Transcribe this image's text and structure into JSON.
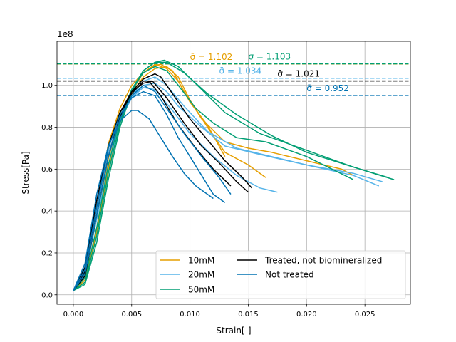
{
  "chart_data": {
    "type": "line",
    "title": "",
    "xlabel": "Strain[-]",
    "ylabel": "Stress[Pa]",
    "y_offset_label": "1e8",
    "xlim": [
      -0.0014,
      0.0289
    ],
    "ylim": [
      -0.045,
      1.21
    ],
    "x_ticks": [
      0.0,
      0.005,
      0.01,
      0.015,
      0.02,
      0.025
    ],
    "x_tick_labels": [
      "0.000",
      "0.005",
      "0.010",
      "0.015",
      "0.020",
      "0.025"
    ],
    "y_ticks": [
      0.0,
      0.2,
      0.4,
      0.6,
      0.8,
      1.0
    ],
    "y_tick_labels": [
      "0.0",
      "0.2",
      "0.4",
      "0.6",
      "0.8",
      "1.0"
    ],
    "grid": true,
    "legend_position": "lower-right",
    "legend": [
      {
        "label": "10mM",
        "color": "#E69F00"
      },
      {
        "label": "20mM",
        "color": "#56B4E9"
      },
      {
        "label": "50mM",
        "color": "#009E73"
      },
      {
        "label": "Treated, not biomineralized",
        "color": "#000000"
      },
      {
        "label": "Not treated",
        "color": "#0072B2"
      }
    ],
    "mean_lines": [
      {
        "y": 1.102,
        "color": "#E69F00",
        "label": "σ̄ = 1.102",
        "label_x": 0.01
      },
      {
        "y": 1.103,
        "color": "#009E73",
        "label": "σ̄ = 1.103",
        "label_x": 0.015
      },
      {
        "y": 1.034,
        "color": "#56B4E9",
        "label": "σ̄ = 1.034",
        "label_x": 0.0125
      },
      {
        "y": 1.021,
        "color": "#000000",
        "label": "σ̄ = 1.021",
        "label_x": 0.0175
      },
      {
        "y": 0.952,
        "color": "#0072B2",
        "label": "σ̄ = 0.952",
        "label_x": 0.02
      }
    ],
    "series": [
      {
        "group": "10mM",
        "color": "#E69F00",
        "x": [
          0.0,
          0.001,
          0.002,
          0.003,
          0.004,
          0.005,
          0.006,
          0.007,
          0.0075,
          0.0085,
          0.0095,
          0.011,
          0.013,
          0.015,
          0.017,
          0.02,
          0.023,
          0.024
        ],
        "y": [
          0.02,
          0.08,
          0.4,
          0.72,
          0.89,
          1.0,
          1.06,
          1.095,
          1.1,
          1.07,
          0.97,
          0.84,
          0.73,
          0.7,
          0.68,
          0.64,
          0.6,
          0.57
        ]
      },
      {
        "group": "10mM",
        "color": "#E69F00",
        "x": [
          0.0,
          0.001,
          0.002,
          0.003,
          0.004,
          0.005,
          0.006,
          0.007,
          0.008,
          0.009,
          0.01,
          0.0115,
          0.013,
          0.015,
          0.0165
        ],
        "y": [
          0.02,
          0.1,
          0.36,
          0.65,
          0.84,
          0.96,
          1.04,
          1.08,
          1.09,
          1.04,
          0.93,
          0.8,
          0.68,
          0.62,
          0.56
        ]
      },
      {
        "group": "10mM",
        "color": "#E69F00",
        "x": [
          0.0,
          0.001,
          0.002,
          0.003,
          0.004,
          0.005,
          0.006,
          0.007,
          0.008,
          0.009,
          0.01,
          0.0115,
          0.013
        ],
        "y": [
          0.02,
          0.07,
          0.3,
          0.6,
          0.82,
          0.97,
          1.06,
          1.1,
          1.08,
          1.02,
          0.92,
          0.81,
          0.66
        ]
      },
      {
        "group": "20mM",
        "color": "#56B4E9",
        "x": [
          0.0,
          0.001,
          0.002,
          0.003,
          0.004,
          0.005,
          0.006,
          0.007,
          0.008,
          0.009,
          0.011,
          0.013,
          0.016,
          0.02,
          0.024,
          0.0262
        ],
        "y": [
          0.02,
          0.12,
          0.4,
          0.66,
          0.83,
          0.94,
          1.0,
          1.01,
          0.97,
          0.9,
          0.8,
          0.71,
          0.67,
          0.62,
          0.57,
          0.52
        ]
      },
      {
        "group": "20mM",
        "color": "#56B4E9",
        "x": [
          0.0,
          0.001,
          0.002,
          0.003,
          0.004,
          0.005,
          0.006,
          0.007,
          0.008,
          0.0095,
          0.0115,
          0.014,
          0.017,
          0.02,
          0.024,
          0.0265
        ],
        "y": [
          0.02,
          0.1,
          0.36,
          0.62,
          0.82,
          0.95,
          1.02,
          1.04,
          1.0,
          0.9,
          0.78,
          0.7,
          0.66,
          0.62,
          0.58,
          0.54
        ]
      },
      {
        "group": "20mM",
        "color": "#56B4E9",
        "x": [
          0.0,
          0.001,
          0.002,
          0.003,
          0.004,
          0.005,
          0.006,
          0.007,
          0.0085,
          0.01,
          0.012,
          0.014,
          0.016,
          0.0175
        ],
        "y": [
          0.02,
          0.14,
          0.42,
          0.68,
          0.84,
          0.94,
          0.99,
          0.98,
          0.88,
          0.77,
          0.66,
          0.57,
          0.51,
          0.49
        ]
      },
      {
        "group": "50mM",
        "color": "#009E73",
        "x": [
          0.0,
          0.001,
          0.002,
          0.003,
          0.004,
          0.005,
          0.006,
          0.007,
          0.0078,
          0.009,
          0.011,
          0.013,
          0.016,
          0.02,
          0.024,
          0.0275
        ],
        "y": [
          0.02,
          0.05,
          0.25,
          0.55,
          0.8,
          0.97,
          1.07,
          1.11,
          1.12,
          1.09,
          0.98,
          0.87,
          0.77,
          0.69,
          0.61,
          0.55
        ]
      },
      {
        "group": "50mM",
        "color": "#009E73",
        "x": [
          0.0,
          0.001,
          0.002,
          0.003,
          0.004,
          0.005,
          0.006,
          0.007,
          0.008,
          0.0095,
          0.0115,
          0.014,
          0.017,
          0.02,
          0.024,
          0.027
        ],
        "y": [
          0.02,
          0.06,
          0.28,
          0.58,
          0.82,
          0.98,
          1.07,
          1.11,
          1.11,
          1.06,
          0.96,
          0.86,
          0.76,
          0.68,
          0.61,
          0.56
        ]
      },
      {
        "group": "50mM",
        "color": "#009E73",
        "x": [
          0.0,
          0.001,
          0.002,
          0.003,
          0.004,
          0.005,
          0.006,
          0.007,
          0.008,
          0.009,
          0.0105,
          0.012,
          0.014,
          0.0165,
          0.02,
          0.024
        ],
        "y": [
          0.02,
          0.08,
          0.32,
          0.62,
          0.84,
          0.98,
          1.06,
          1.09,
          1.07,
          1.0,
          0.89,
          0.82,
          0.75,
          0.73,
          0.66,
          0.55
        ]
      },
      {
        "group": "Treated, not biomineralized",
        "color": "#000000",
        "x": [
          0.0,
          0.001,
          0.002,
          0.003,
          0.004,
          0.005,
          0.006,
          0.007,
          0.0075,
          0.0085,
          0.01,
          0.0115,
          0.013,
          0.0145,
          0.0153
        ],
        "y": [
          0.02,
          0.09,
          0.38,
          0.66,
          0.85,
          0.97,
          1.03,
          1.055,
          1.04,
          0.96,
          0.84,
          0.74,
          0.64,
          0.56,
          0.51
        ]
      },
      {
        "group": "Treated, not biomineralized",
        "color": "#000000",
        "x": [
          0.0,
          0.001,
          0.002,
          0.003,
          0.004,
          0.005,
          0.006,
          0.0068,
          0.008,
          0.0095,
          0.011,
          0.0125,
          0.014,
          0.015
        ],
        "y": [
          0.02,
          0.11,
          0.42,
          0.7,
          0.87,
          0.97,
          1.01,
          1.02,
          0.94,
          0.82,
          0.71,
          0.63,
          0.54,
          0.49
        ]
      },
      {
        "group": "Treated, not biomineralized",
        "color": "#000000",
        "x": [
          0.0,
          0.001,
          0.002,
          0.003,
          0.004,
          0.005,
          0.006,
          0.0065,
          0.0075,
          0.009,
          0.0105,
          0.012,
          0.0135
        ],
        "y": [
          0.02,
          0.13,
          0.45,
          0.71,
          0.87,
          0.96,
          1.02,
          1.02,
          0.95,
          0.81,
          0.7,
          0.6,
          0.52
        ]
      },
      {
        "group": "Not treated",
        "color": "#0072B2",
        "x": [
          0.0,
          0.001,
          0.002,
          0.003,
          0.004,
          0.005,
          0.006,
          0.007,
          0.008,
          0.009,
          0.01,
          0.011,
          0.012,
          0.013
        ],
        "y": [
          0.02,
          0.12,
          0.42,
          0.7,
          0.86,
          0.94,
          0.97,
          0.95,
          0.86,
          0.75,
          0.66,
          0.57,
          0.48,
          0.44
        ]
      },
      {
        "group": "Not treated",
        "color": "#0072B2",
        "x": [
          0.0,
          0.001,
          0.002,
          0.003,
          0.004,
          0.005,
          0.0055,
          0.0065,
          0.0075,
          0.0085,
          0.0095,
          0.0105,
          0.012
        ],
        "y": [
          0.02,
          0.15,
          0.48,
          0.71,
          0.83,
          0.88,
          0.88,
          0.84,
          0.75,
          0.66,
          0.58,
          0.52,
          0.46
        ]
      },
      {
        "group": "Not treated",
        "color": "#0072B2",
        "x": [
          0.0,
          0.001,
          0.002,
          0.003,
          0.004,
          0.005,
          0.006,
          0.007,
          0.008,
          0.0095,
          0.011,
          0.0125,
          0.0135
        ],
        "y": [
          0.02,
          0.1,
          0.38,
          0.66,
          0.84,
          0.95,
          1.0,
          0.97,
          0.89,
          0.77,
          0.66,
          0.56,
          0.48
        ]
      }
    ]
  }
}
